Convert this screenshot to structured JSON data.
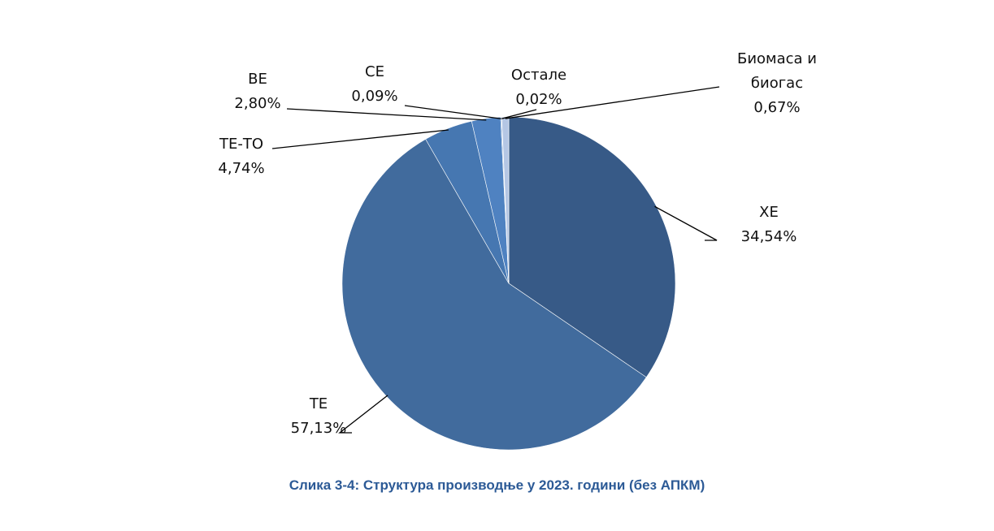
{
  "caption": "Слика 3-4: Структура производње у 2023. години (без АПКМ)",
  "chart_data": {
    "type": "pie",
    "start": "top, clockwise",
    "slices": [
      {
        "label": "ХЕ",
        "lines": [
          "ХЕ"
        ],
        "value": 34.54,
        "value_text": "34,54%",
        "color": "#375a87"
      },
      {
        "label": "ТЕ",
        "lines": [
          "ТЕ"
        ],
        "value": 57.13,
        "value_text": "57,13%",
        "color": "#416b9d"
      },
      {
        "label": "ТЕ-ТО",
        "lines": [
          "ТЕ-ТО"
        ],
        "value": 4.74,
        "value_text": "4,74%",
        "color": "#4677b1"
      },
      {
        "label": "ВЕ",
        "lines": [
          "ВЕ"
        ],
        "value": 2.8,
        "value_text": "2,80%",
        "color": "#4f82c1"
      },
      {
        "label": "СЕ",
        "lines": [
          "СЕ"
        ],
        "value": 0.09,
        "value_text": "0,09%",
        "color": "#7a9fd0"
      },
      {
        "label": "Остале",
        "lines": [
          "Остале"
        ],
        "value": 0.02,
        "value_text": "0,02%",
        "color": "#8fb0da"
      },
      {
        "label": "Биомаса и биогас",
        "lines": [
          "Биомаса и",
          "биогас"
        ],
        "value": 0.67,
        "value_text": "0,67%",
        "color": "#b4c6e4"
      }
    ]
  }
}
